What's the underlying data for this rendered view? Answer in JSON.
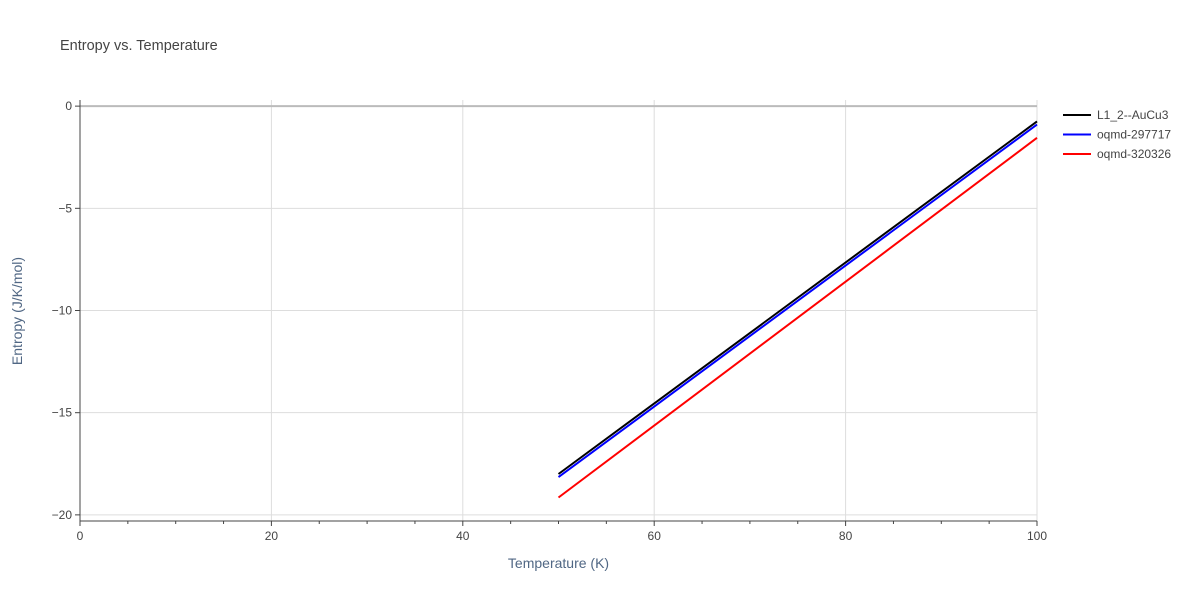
{
  "chart_data": {
    "type": "line",
    "title": "Entropy vs. Temperature",
    "xlabel": "Temperature (K)",
    "ylabel": "Entropy (J/K/mol)",
    "xlim": [
      0,
      100
    ],
    "ylim": [
      -20.3,
      0.3
    ],
    "x_ticks": [
      0,
      20,
      40,
      60,
      80,
      100
    ],
    "x_minor_ticks": [
      5,
      10,
      15,
      25,
      30,
      35,
      45,
      50,
      55,
      65,
      70,
      75,
      85,
      90,
      95
    ],
    "y_ticks": [
      0,
      -5,
      -10,
      -15,
      -20
    ],
    "grid": true,
    "legend_position": "top-right",
    "series": [
      {
        "name": "L1_2--AuCu3",
        "color": "#000000",
        "x": [
          50,
          100
        ],
        "y": [
          -18.0,
          -0.75
        ]
      },
      {
        "name": "oqmd-297717",
        "color": "#0000ff",
        "x": [
          50,
          100
        ],
        "y": [
          -18.15,
          -0.9
        ]
      },
      {
        "name": "oqmd-320326",
        "color": "#ff0000",
        "x": [
          50,
          100
        ],
        "y": [
          -19.15,
          -1.55
        ]
      }
    ]
  }
}
